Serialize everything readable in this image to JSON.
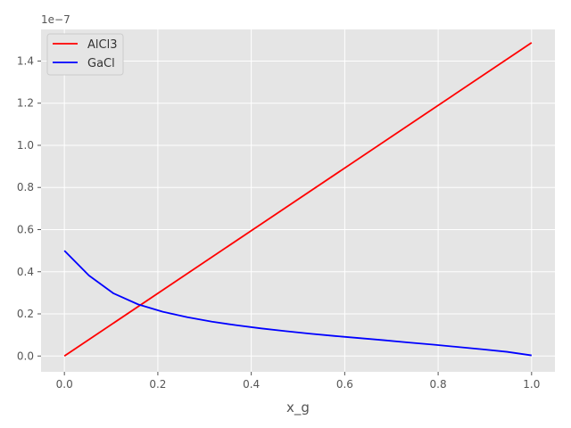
{
  "chart_data": {
    "type": "line",
    "xlabel": "x_g",
    "ylabel": "",
    "y_scale_label": "1e−7",
    "y_multiplier": 1e-07,
    "xlim": [
      -0.05,
      1.05
    ],
    "ylim": [
      -0.075,
      1.55
    ],
    "x_ticks": [
      0.0,
      0.2,
      0.4,
      0.6,
      0.8,
      1.0
    ],
    "x_tick_labels": [
      "0.0",
      "0.2",
      "0.4",
      "0.6",
      "0.8",
      "1.0"
    ],
    "y_ticks": [
      0.0,
      0.2,
      0.4,
      0.6,
      0.8,
      1.0,
      1.2,
      1.4
    ],
    "y_tick_labels": [
      "0.0",
      "0.2",
      "0.4",
      "0.6",
      "0.8",
      "1.0",
      "1.2",
      "1.4"
    ],
    "grid": true,
    "legend_position": "upper-left",
    "background_color": "#E5E5E5",
    "grid_color": "#FFFFFF",
    "series": [
      {
        "name": "AlCl3",
        "color": "#FF0000",
        "x": [
          0.0,
          1.0
        ],
        "y": [
          0.0,
          1.487
        ]
      },
      {
        "name": "GaCl",
        "color": "#0000FF",
        "x": [
          0.0,
          0.0526,
          0.1053,
          0.1579,
          0.2105,
          0.2632,
          0.3158,
          0.3684,
          0.4211,
          0.4737,
          0.5263,
          0.5789,
          0.6316,
          0.6842,
          0.7368,
          0.7895,
          0.8421,
          0.8947,
          0.9474,
          1.0
        ],
        "y": [
          0.5,
          0.382,
          0.297,
          0.245,
          0.21,
          0.184,
          0.163,
          0.146,
          0.131,
          0.118,
          0.106,
          0.095,
          0.085,
          0.075,
          0.064,
          0.054,
          0.043,
          0.032,
          0.02,
          0.003
        ]
      }
    ]
  }
}
